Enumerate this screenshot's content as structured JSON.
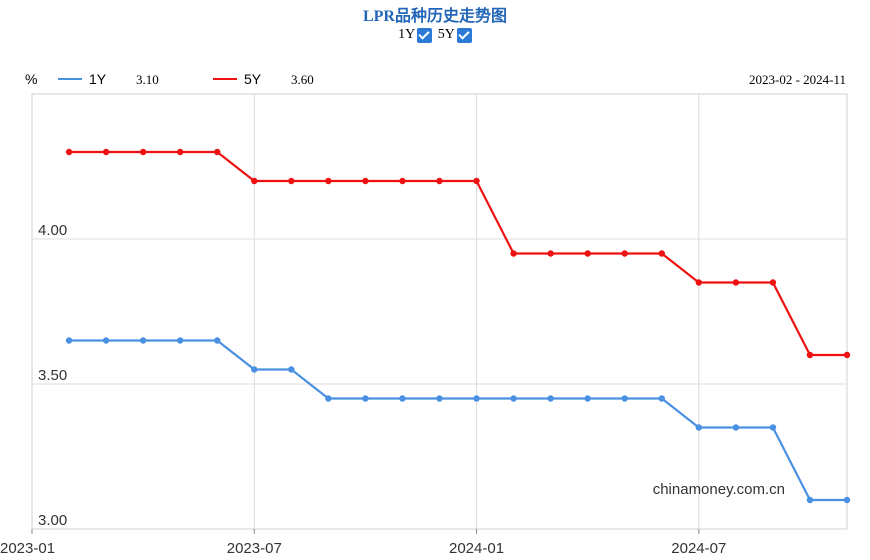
{
  "title": "LPR品种历史走势图",
  "toggles": [
    {
      "label": "1Y",
      "checked": true
    },
    {
      "label": "5Y",
      "checked": true
    }
  ],
  "legend": {
    "unit": "%",
    "items": [
      {
        "name": "1Y",
        "latest": "3.10",
        "color": "#4a90e2"
      },
      {
        "name": "5Y",
        "latest": "3.60",
        "color": "#ee1111"
      }
    ],
    "range": "2023-02 - 2024-11"
  },
  "watermark": "chinamoney.com.cn",
  "chart_data": {
    "type": "line",
    "x": [
      "2023-02",
      "2023-03",
      "2023-04",
      "2023-05",
      "2023-06",
      "2023-07",
      "2023-08",
      "2023-09",
      "2023-10",
      "2023-11",
      "2023-12",
      "2024-01",
      "2024-02",
      "2024-03",
      "2024-04",
      "2024-05",
      "2024-06",
      "2024-07",
      "2024-08",
      "2024-09",
      "2024-10",
      "2024-11"
    ],
    "series": [
      {
        "name": "1Y",
        "color": "#4a90e2",
        "values": [
          3.65,
          3.65,
          3.65,
          3.65,
          3.65,
          3.55,
          3.55,
          3.45,
          3.45,
          3.45,
          3.45,
          3.45,
          3.45,
          3.45,
          3.45,
          3.45,
          3.45,
          3.35,
          3.35,
          3.35,
          3.1,
          3.1
        ]
      },
      {
        "name": "5Y",
        "color": "#ee1111",
        "values": [
          4.3,
          4.3,
          4.3,
          4.3,
          4.3,
          4.2,
          4.2,
          4.2,
          4.2,
          4.2,
          4.2,
          4.2,
          3.95,
          3.95,
          3.95,
          3.95,
          3.95,
          3.85,
          3.85,
          3.85,
          3.6,
          3.6
        ]
      }
    ],
    "yticks": [
      "4.00",
      "3.50",
      "3.00"
    ],
    "xticks": [
      "2023-01",
      "2023-07",
      "2024-01",
      "2024-07"
    ],
    "ylim": [
      3.0,
      4.5
    ],
    "grid": true,
    "legend_position": "top"
  }
}
